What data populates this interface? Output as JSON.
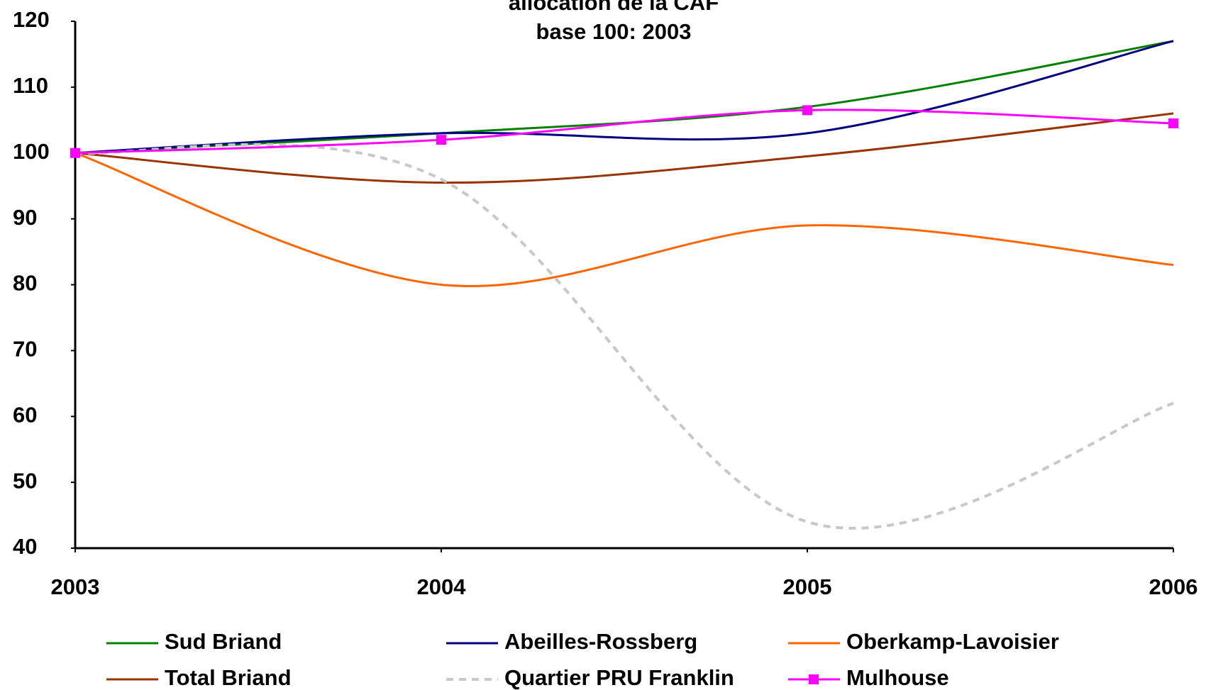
{
  "chart_data": {
    "type": "line",
    "title": [
      "allocation de la CAF",
      "base 100: 2003"
    ],
    "x": [
      2003,
      2004,
      2005,
      2006
    ],
    "xlim": [
      2003,
      2006
    ],
    "xticks": [
      2003,
      2004,
      2005,
      2006
    ],
    "ylim": [
      40,
      120
    ],
    "yticks": [
      40,
      50,
      60,
      70,
      80,
      90,
      100,
      110,
      120
    ],
    "smooth": true,
    "series": [
      {
        "name": "Sud Briand",
        "color": "#008000",
        "values": [
          100,
          103,
          107,
          117
        ]
      },
      {
        "name": "Abeilles-Rossberg",
        "color": "#000080",
        "values": [
          100,
          103,
          103,
          117
        ]
      },
      {
        "name": "Oberkamp-Lavoisier",
        "color": "#ff6600",
        "values": [
          100,
          80,
          89,
          83
        ]
      },
      {
        "name": "Total Briand",
        "color": "#993300",
        "values": [
          100,
          95.5,
          99.5,
          106
        ]
      },
      {
        "name": "Quartier PRU Franklin",
        "color": "#c8c8c8",
        "dashed": true,
        "values": [
          100,
          96,
          44,
          62
        ]
      },
      {
        "name": "Mulhouse",
        "color": "#ff00ff",
        "marker": "square",
        "values": [
          100,
          102,
          106.5,
          104.5
        ]
      }
    ]
  }
}
